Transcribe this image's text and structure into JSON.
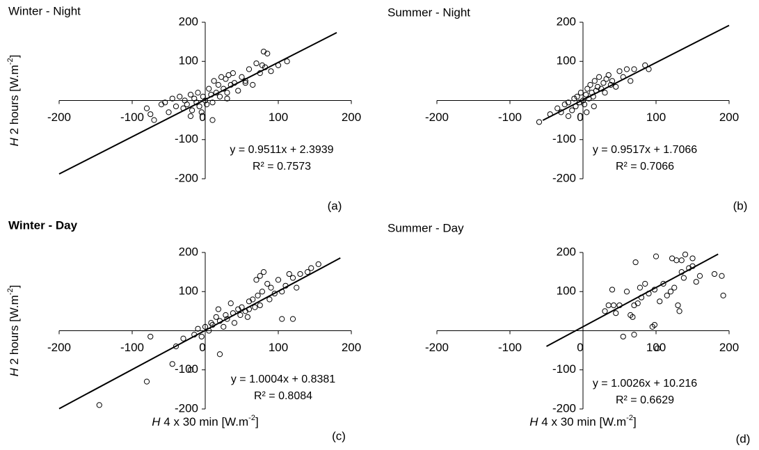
{
  "chart_data": [
    {
      "type": "scatter",
      "title": "Winter - Night",
      "panel_label": "(a)",
      "color": "#000000",
      "ylabel": {
        "italic": "H",
        "text": " 2 hours [W.m",
        "sup": "-2",
        "end": "]"
      },
      "x": [
        -80,
        -75,
        -60,
        -55,
        -50,
        -45,
        -40,
        -35,
        -30,
        -28,
        -25,
        -20,
        -18,
        -15,
        -12,
        -10,
        -8,
        -5,
        -3,
        0,
        2,
        5,
        8,
        10,
        12,
        15,
        18,
        20,
        22,
        25,
        28,
        30,
        32,
        35,
        38,
        40,
        45,
        50,
        55,
        60,
        65,
        70,
        75,
        78,
        80,
        82,
        85,
        90,
        100,
        112,
        -70,
        -20,
        10,
        30,
        55
      ],
      "y": [
        -20,
        -35,
        -10,
        -5,
        -30,
        5,
        -15,
        10,
        -20,
        0,
        -10,
        15,
        -25,
        5,
        -5,
        20,
        -15,
        -30,
        10,
        0,
        -10,
        30,
        15,
        -5,
        50,
        20,
        40,
        10,
        60,
        30,
        55,
        20,
        65,
        40,
        70,
        45,
        25,
        60,
        50,
        80,
        40,
        95,
        70,
        90,
        125,
        85,
        120,
        75,
        90,
        100,
        -50,
        -40,
        -50,
        5,
        45
      ],
      "xlim": [
        -200,
        200
      ],
      "ylim": [
        -200,
        200
      ],
      "xticks": [
        -200,
        -100,
        0,
        100,
        200
      ],
      "yticks": [
        -200,
        -100,
        100,
        200
      ],
      "trendline": {
        "slope": 0.9511,
        "intercept": 2.3939,
        "x": [
          -200,
          180
        ]
      },
      "equation": "y = 0.9511x + 2.3939",
      "r_squared": "R² = 0.7573"
    },
    {
      "type": "scatter",
      "title": "Summer - Night",
      "panel_label": "(b)",
      "color": "#000000",
      "x": [
        -60,
        -45,
        -35,
        -30,
        -25,
        -20,
        -15,
        -12,
        -10,
        -8,
        -5,
        -3,
        0,
        2,
        4,
        6,
        8,
        10,
        12,
        14,
        16,
        18,
        20,
        22,
        25,
        28,
        30,
        32,
        35,
        38,
        40,
        45,
        50,
        55,
        60,
        65,
        70,
        85,
        90,
        -20,
        5,
        15
      ],
      "y": [
        -55,
        -35,
        -20,
        -30,
        -10,
        -5,
        -25,
        5,
        -15,
        10,
        -5,
        20,
        0,
        -10,
        15,
        30,
        5,
        40,
        20,
        10,
        50,
        25,
        35,
        60,
        30,
        45,
        20,
        55,
        65,
        40,
        50,
        35,
        75,
        60,
        80,
        50,
        80,
        90,
        80,
        -40,
        -30,
        -15
      ],
      "xlim": [
        -200,
        200
      ],
      "ylim": [
        -200,
        200
      ],
      "xticks": [
        -200,
        -100,
        0,
        100,
        200
      ],
      "yticks": [
        -200,
        -100,
        100,
        200
      ],
      "trendline": {
        "slope": 0.9517,
        "intercept": 1.7066,
        "x": [
          -55,
          200
        ]
      },
      "equation": "y = 0.9517x + 1.7066",
      "r_squared": "R² = 0.7066"
    },
    {
      "type": "scatter",
      "title": "Winter - Day",
      "panel_label": "(c)",
      "color": "#000000",
      "ylabel": {
        "italic": "H",
        "text": " 2 hours [W.m",
        "sup": "-2",
        "end": "]"
      },
      "xlabel": {
        "italic": "H",
        "text": " 4 x 30 min [W.m",
        "sup": "-2",
        "end": "]"
      },
      "x": [
        -145,
        -80,
        -75,
        -45,
        -20,
        -30,
        -15,
        -10,
        -5,
        0,
        5,
        8,
        10,
        15,
        18,
        20,
        25,
        28,
        30,
        35,
        38,
        40,
        45,
        48,
        50,
        55,
        58,
        60,
        65,
        68,
        70,
        72,
        75,
        78,
        80,
        85,
        88,
        90,
        95,
        100,
        105,
        110,
        115,
        120,
        125,
        130,
        140,
        145,
        155,
        20,
        105,
        120,
        -40,
        60,
        75
      ],
      "y": [
        -190,
        -130,
        -15,
        -85,
        -100,
        -20,
        -10,
        5,
        -15,
        10,
        0,
        20,
        15,
        35,
        55,
        25,
        10,
        40,
        30,
        70,
        45,
        20,
        55,
        40,
        60,
        50,
        35,
        75,
        80,
        60,
        130,
        90,
        65,
        100,
        150,
        120,
        80,
        110,
        95,
        130,
        100,
        115,
        145,
        135,
        110,
        145,
        150,
        160,
        170,
        -60,
        30,
        30,
        -40,
        55,
        140
      ],
      "xlim": [
        -200,
        200
      ],
      "ylim": [
        -200,
        200
      ],
      "xticks": [
        -200,
        -100,
        0,
        100,
        200
      ],
      "yticks": [
        -200,
        -100,
        100,
        200
      ],
      "trendline": {
        "slope": 1.0004,
        "intercept": 0.8381,
        "x": [
          -200,
          185
        ]
      },
      "equation": "y = 1.0004x + 0.8381",
      "r_squared": "R² = 0.8084"
    },
    {
      "type": "scatter",
      "title": "Summer - Day",
      "panel_label": "(d)",
      "color": "#000000",
      "xlabel": {
        "italic": "H",
        "text": " 4 x 30 min [W.m",
        "sup": "-2",
        "end": "]"
      },
      "x": [
        30,
        35,
        40,
        42,
        45,
        55,
        60,
        65,
        68,
        70,
        72,
        75,
        78,
        80,
        85,
        90,
        95,
        98,
        100,
        102,
        105,
        110,
        115,
        120,
        122,
        125,
        128,
        130,
        132,
        135,
        138,
        140,
        145,
        150,
        155,
        160,
        180,
        190,
        192,
        50,
        70,
        98,
        135,
        150
      ],
      "y": [
        50,
        65,
        105,
        65,
        45,
        -15,
        100,
        40,
        35,
        65,
        175,
        70,
        110,
        85,
        120,
        95,
        10,
        15,
        190,
        -45,
        75,
        120,
        90,
        100,
        185,
        110,
        180,
        65,
        50,
        150,
        135,
        195,
        160,
        185,
        125,
        140,
        145,
        140,
        90,
        65,
        -10,
        105,
        180,
        165
      ],
      "xlim": [
        -200,
        200
      ],
      "ylim": [
        -200,
        200
      ],
      "xticks": [
        -200,
        -100,
        0,
        100,
        200
      ],
      "yticks": [
        -200,
        -100,
        100,
        200
      ],
      "trendline": {
        "slope": 1.0026,
        "intercept": 10.216,
        "x": [
          -50,
          185
        ]
      },
      "equation": "y = 1.0026x + 10.216",
      "r_squared": "R² = 0.6629"
    }
  ]
}
